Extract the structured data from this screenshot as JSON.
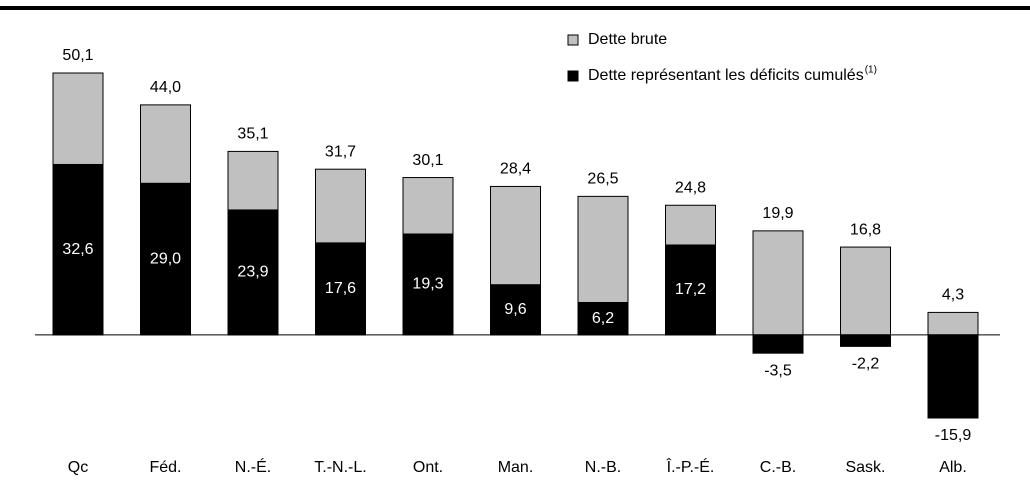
{
  "chart_data": {
    "type": "overlap_bar",
    "categories": [
      "Qc",
      "Féd.",
      "N.-É.",
      "T.-N.-L.",
      "Ont.",
      "Man.",
      "N.-B.",
      "Î.-P.-É.",
      "C.-B.",
      "Sask.",
      "Alb."
    ],
    "series": [
      {
        "name": "Dette brute",
        "color": "#c0c0c0",
        "values": [
          50.1,
          44.0,
          35.1,
          31.7,
          30.1,
          28.4,
          26.5,
          24.8,
          19.9,
          16.8,
          4.3
        ],
        "value_labels": [
          "50,1",
          "44,0",
          "35,1",
          "31,7",
          "30,1",
          "28,4",
          "26,5",
          "24,8",
          "19,9",
          "16,8",
          "4,3"
        ]
      },
      {
        "name": "Dette représentant les déficits cumulés",
        "color": "#000000",
        "values": [
          32.6,
          29.0,
          23.9,
          17.6,
          19.3,
          9.6,
          6.2,
          17.2,
          -3.5,
          -2.2,
          -15.9
        ],
        "value_labels": [
          "32,6",
          "29,0",
          "23,9",
          "17,6",
          "19,3",
          "9,6",
          "6,2",
          "17,2",
          "-3,5",
          "-2,2",
          "-15,9"
        ]
      }
    ],
    "legend_superscript": "(1)"
  }
}
